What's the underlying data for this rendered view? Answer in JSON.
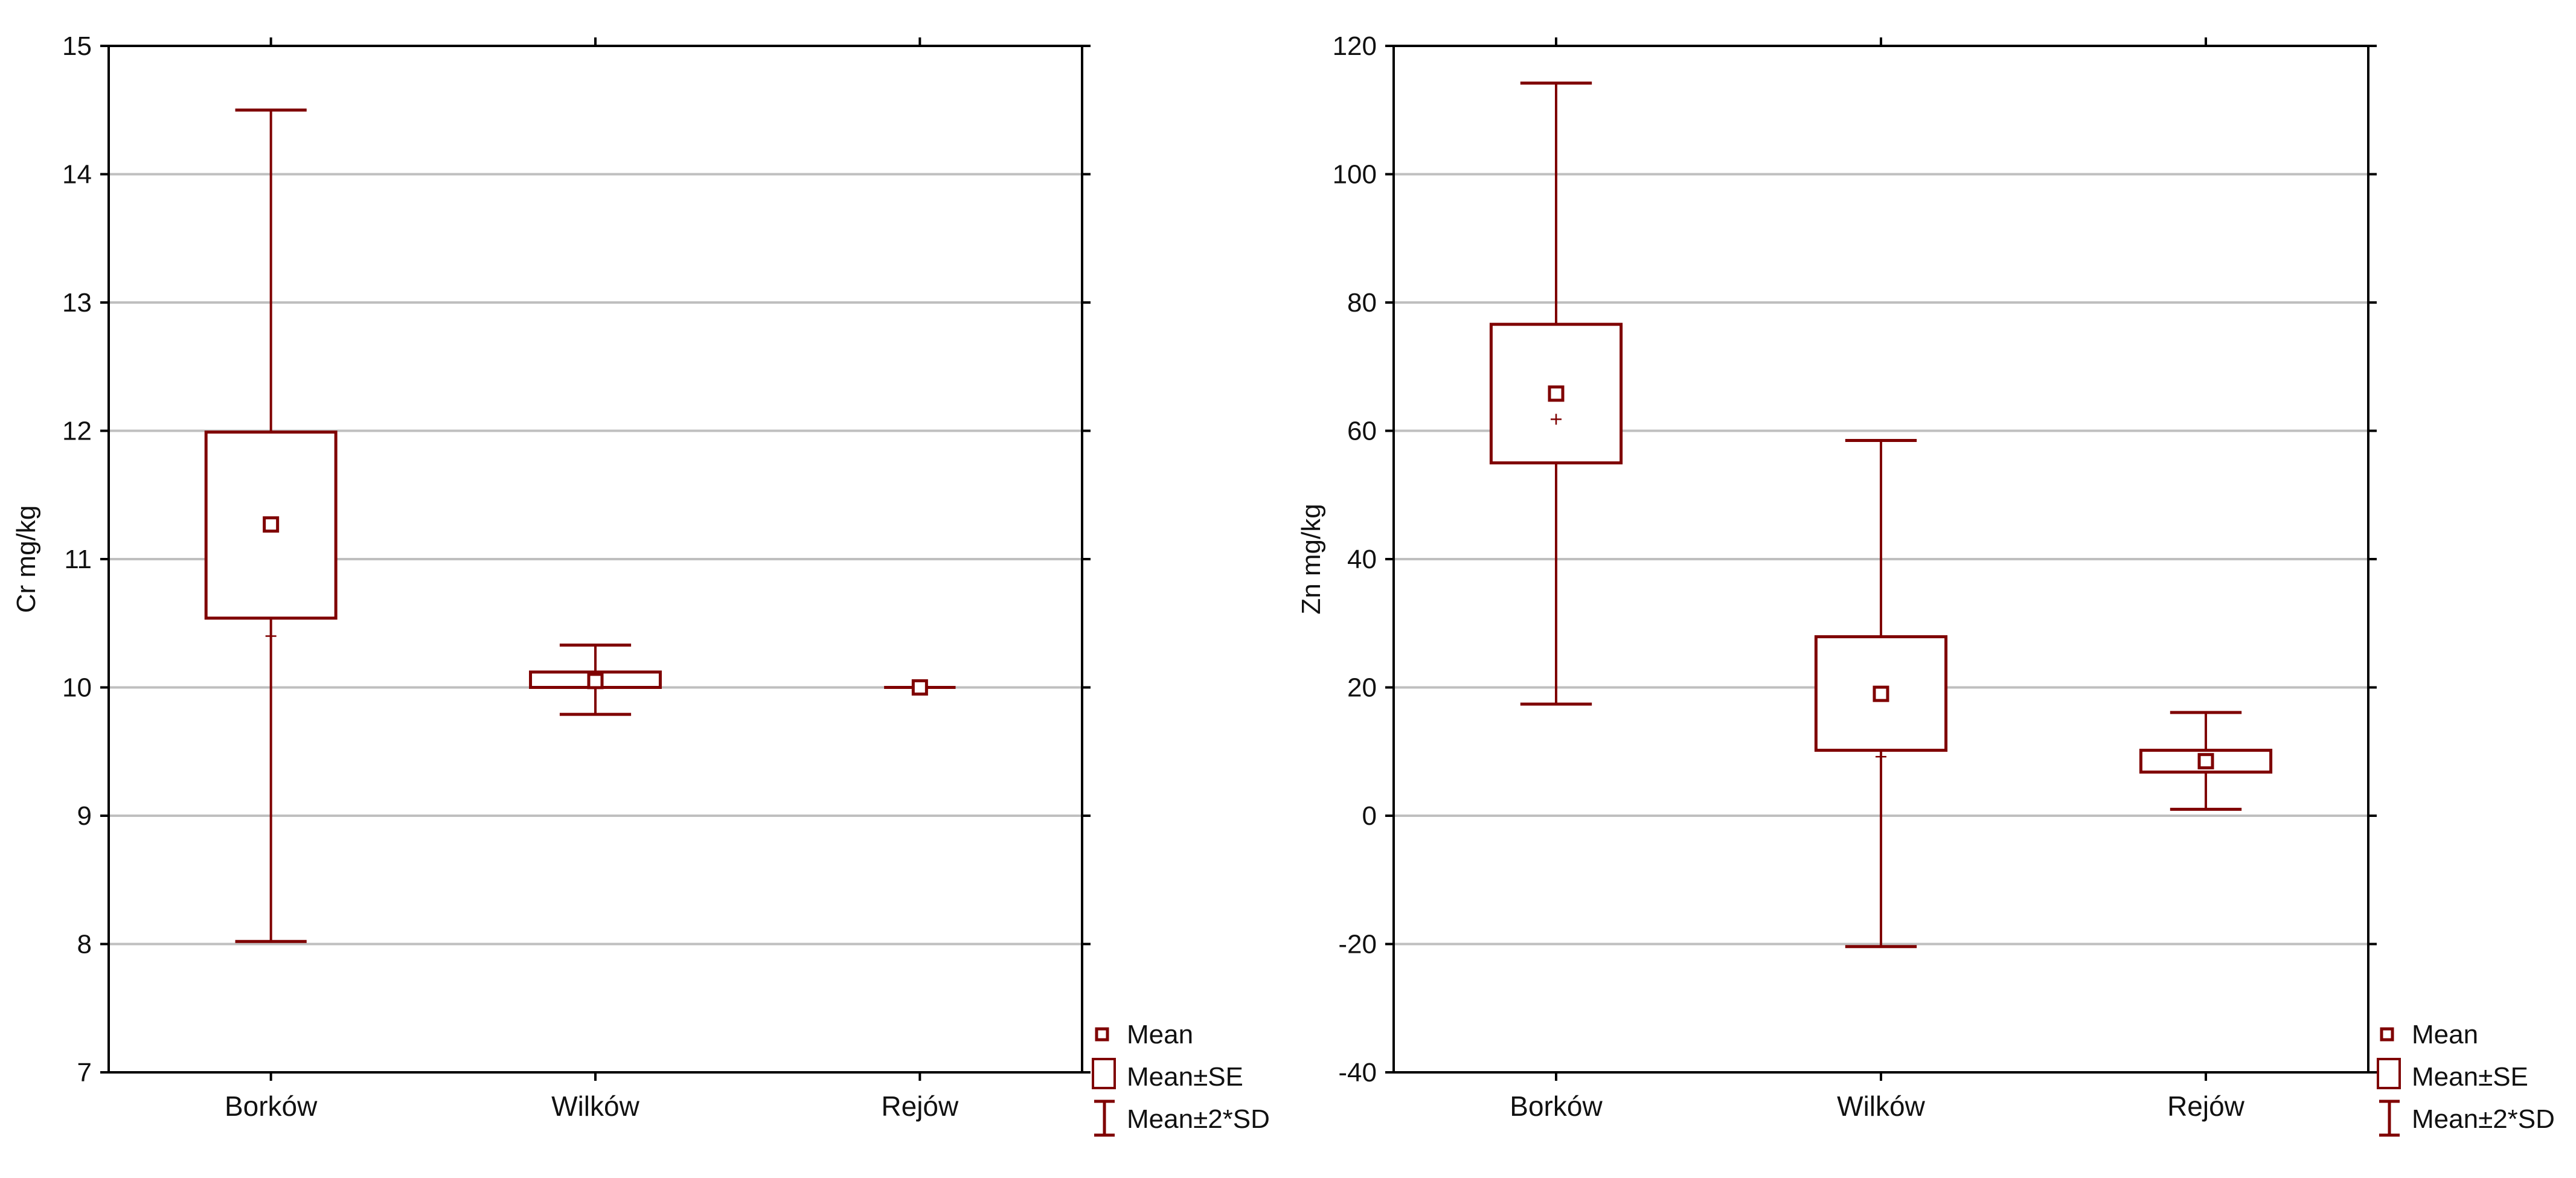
{
  "colors": {
    "series": "#7f0000",
    "gridline": "#bfbfbf",
    "frame": "#000000",
    "text": "#111111"
  },
  "legend": {
    "mean": "Mean",
    "se": "Mean±SE",
    "sd": "Mean±2*SD"
  },
  "chart_data": [
    {
      "type": "box",
      "title": "",
      "xlabel": "",
      "ylabel": "Cr mg/kg",
      "ylim": [
        7,
        15
      ],
      "yticks": [
        7,
        8,
        9,
        10,
        11,
        12,
        13,
        14,
        15
      ],
      "grid": true,
      "legend_position": "bottom-right-outside",
      "categories": [
        "Borków",
        "Wilków",
        "Rejów"
      ],
      "series": [
        {
          "name": "Borków",
          "mean": 11.27,
          "se_low": 10.54,
          "se_high": 11.99,
          "sd2_low": 8.02,
          "sd2_high": 14.5,
          "median": 10.4
        },
        {
          "name": "Wilków",
          "mean": 10.05,
          "se_low": 10.0,
          "se_high": 10.12,
          "sd2_low": 9.79,
          "sd2_high": 10.33,
          "median": null
        },
        {
          "name": "Rejów",
          "mean": 10.0,
          "se_low": 10.0,
          "se_high": 10.0,
          "sd2_low": 10.0,
          "sd2_high": 10.0,
          "median": null
        }
      ]
    },
    {
      "type": "box",
      "title": "",
      "xlabel": "",
      "ylabel": "Zn mg/kg",
      "ylim": [
        -40,
        120
      ],
      "yticks": [
        -40,
        -20,
        0,
        20,
        40,
        60,
        80,
        100,
        120
      ],
      "grid": true,
      "legend_position": "bottom-right-outside",
      "categories": [
        "Borków",
        "Wilków",
        "Rejów"
      ],
      "series": [
        {
          "name": "Borków",
          "mean": 65.8,
          "se_low": 55.0,
          "se_high": 76.6,
          "sd2_low": 17.4,
          "sd2_high": 114.2,
          "median": 61.8
        },
        {
          "name": "Wilków",
          "mean": 19.0,
          "se_low": 10.2,
          "se_high": 27.9,
          "sd2_low": -20.4,
          "sd2_high": 58.5,
          "median": 9.2
        },
        {
          "name": "Rejów",
          "mean": 8.5,
          "se_low": 6.8,
          "se_high": 10.2,
          "sd2_low": 1.0,
          "sd2_high": 16.1,
          "median": null
        }
      ]
    }
  ]
}
